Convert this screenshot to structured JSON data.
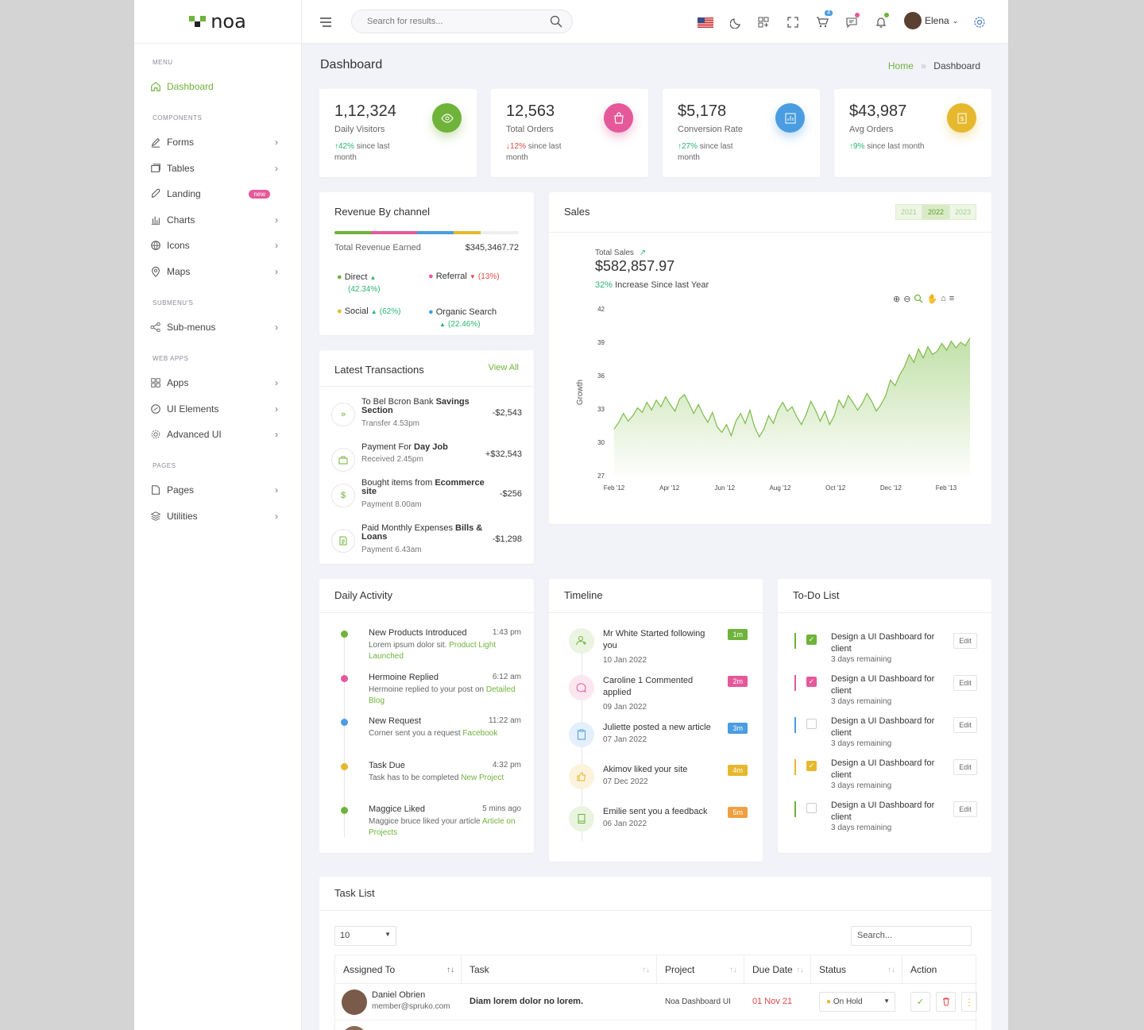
{
  "brand": {
    "name": "noa"
  },
  "sidebar": {
    "sections": {
      "menu": "MENU",
      "components": "COMPONENTS",
      "submenus": "SUBMENU'S",
      "webapps": "WEB APPS",
      "pages": "PAGES"
    },
    "items": {
      "dashboard": "Dashboard",
      "forms": "Forms",
      "tables": "Tables",
      "landing": "Landing",
      "landing_badge": "new",
      "charts": "Charts",
      "icons": "Icons",
      "maps": "Maps",
      "submenus": "Sub-menus",
      "apps": "Apps",
      "ui_elements": "UI Elements",
      "advanced_ui": "Advanced UI",
      "pages": "Pages",
      "utilities": "Utilities"
    }
  },
  "header": {
    "search_placeholder": "Search for results...",
    "cart_count": "4",
    "user_name": "Elena"
  },
  "page": {
    "title": "Dashboard",
    "breadcrumb_home": "Home",
    "breadcrumb_current": "Dashboard"
  },
  "stats": [
    {
      "value": "1,12,324",
      "label": "Daily Visitors",
      "change": "42%",
      "direction": "up",
      "suffix": "since last month",
      "color": "#6fb33a",
      "icon": "eye-icon"
    },
    {
      "value": "12,563",
      "label": "Total Orders",
      "change": "12%",
      "direction": "down",
      "suffix": "since last month",
      "color": "#e5599a",
      "icon": "bag-icon"
    },
    {
      "value": "$5,178",
      "label": "Conversion Rate",
      "change": "27%",
      "direction": "up",
      "suffix": "since last month",
      "color": "#4a9de0",
      "icon": "chart-icon"
    },
    {
      "value": "$43,987",
      "label": "Avg Orders",
      "change": "9%",
      "direction": "up",
      "suffix": "since last month",
      "color": "#e5b82e",
      "icon": "money-icon"
    }
  ],
  "revenue": {
    "title": "Revenue By channel",
    "total_label": "Total Revenue Earned",
    "total_value": "$345,3467.72",
    "channels": [
      {
        "name": "Direct",
        "pct": "(42.34%)",
        "dir": "up",
        "color": "#6fb33a"
      },
      {
        "name": "Referral",
        "pct": "(13%)",
        "dir": "down",
        "color": "#e5599a"
      },
      {
        "name": "Social",
        "pct": "(62%)",
        "dir": "up",
        "color": "#e5b82e"
      },
      {
        "name": "Organic Search",
        "pct": "(22.46%)",
        "dir": "up",
        "color": "#4a9de0"
      }
    ]
  },
  "transactions": {
    "title": "Latest Transactions",
    "view_all": "View All",
    "items": [
      {
        "title_pre": "To Bel Bcron Bank ",
        "title_bold": "Savings Section",
        "sub": "Transfer 4.53pm",
        "amount": "-$2,543"
      },
      {
        "title_pre": "Payment For ",
        "title_bold": "Day Job",
        "sub": "Received 2.45pm",
        "amount": "+$32,543"
      },
      {
        "title_pre": "Bought items from ",
        "title_bold": "Ecommerce site",
        "sub": "Payment 8.00am",
        "amount": "-$256"
      },
      {
        "title_pre": "Paid Monthly Expenses ",
        "title_bold": "Bills & Loans",
        "sub": "Payment 6.43am",
        "amount": "-$1,298"
      }
    ]
  },
  "sales": {
    "title": "Sales",
    "years": [
      "2021",
      "2022",
      "2023"
    ],
    "total_label": "Total Sales",
    "total_value": "$582,857.97",
    "increase_pct": "32%",
    "increase_text": "Increase Since last Year"
  },
  "chart_data": {
    "type": "area",
    "title": "",
    "xlabel": "",
    "ylabel": "Growth",
    "x_ticks": [
      "Feb '12",
      "Apr '12",
      "Jun '12",
      "Aug '12",
      "Oct '12",
      "Dec '12",
      "Feb '13"
    ],
    "y_ticks": [
      27,
      30,
      33,
      36,
      39,
      42
    ],
    "ylim": [
      27,
      42
    ],
    "series": [
      {
        "values": [
          31.2,
          31.8,
          32.6,
          31.9,
          32.4,
          33.1,
          32.7,
          33.6,
          32.9,
          33.8,
          33.2,
          34.1,
          33.4,
          32.8,
          33.9,
          34.3,
          33.5,
          32.6,
          33.4,
          32.5,
          31.8,
          32.7,
          31.4,
          30.9,
          31.6,
          30.6,
          31.9,
          32.6,
          31.7,
          32.9,
          31.4,
          30.5,
          31.2,
          32.4,
          31.7,
          32.9,
          33.6,
          32.8,
          33.2,
          32.3,
          31.6,
          32.5,
          33.7,
          32.9,
          31.9,
          32.8,
          31.6,
          32.4,
          33.8,
          33.1,
          34.2,
          33.6,
          32.9,
          33.5,
          34.4,
          33.7,
          32.8,
          33.4,
          34.2,
          35.6,
          35.1,
          36.1,
          36.8,
          37.9,
          37.2,
          38.4,
          37.6,
          38.6,
          37.9,
          38.2,
          38.9,
          38.3,
          39.1,
          38.5,
          39.0,
          38.7,
          39.4
        ]
      }
    ]
  },
  "activity": {
    "title": "Daily Activity",
    "items": [
      {
        "title": "New Products Introduced",
        "time": "1:43 pm",
        "desc": "Lorem ipsum dolor sit.",
        "link": "Product Light Launched",
        "color": "#6fb33a"
      },
      {
        "title": "Hermoine Replied",
        "time": "6:12 am",
        "desc": "Hermoine replied to your post on",
        "link": "Detailed Blog",
        "color": "#e5599a"
      },
      {
        "title": "New Request",
        "time": "11:22 am",
        "desc": "Corner sent you a request",
        "link": "Facebook",
        "color": "#4a9de0"
      },
      {
        "title": "Task Due",
        "time": "4:32 pm",
        "desc": "Task has to be completed",
        "link": "New Project",
        "color": "#e5b82e"
      },
      {
        "title": "Maggice Liked",
        "time": "5 mins ago",
        "desc": "Maggice bruce liked your article",
        "link": "Article on Projects",
        "color": "#6fb33a"
      }
    ]
  },
  "timeline": {
    "title": "Timeline",
    "items": [
      {
        "title": "Mr White Started following you",
        "date": "10 Jan 2022",
        "badge": "1m",
        "color": "#6fb33a",
        "icon": "user-plus-icon"
      },
      {
        "title": "Caroline 1 Commented applied",
        "date": "09 Jan 2022",
        "badge": "2m",
        "color": "#e5599a",
        "icon": "comment-icon"
      },
      {
        "title": "Juliette posted a new article",
        "date": "07 Jan 2022",
        "badge": "3m",
        "color": "#4a9de0",
        "icon": "clipboard-icon"
      },
      {
        "title": "Akimov liked your site",
        "date": "07 Dec 2022",
        "badge": "4m",
        "color": "#e5b82e",
        "icon": "thumbs-up-icon"
      },
      {
        "title": "Emilie sent you a feedback",
        "date": "06 Jan 2022",
        "badge": "5m",
        "color": "#f0a040",
        "icon": "book-icon"
      }
    ]
  },
  "todo": {
    "title": "To-Do List",
    "edit_label": "Edit",
    "items": [
      {
        "text": "Design a UI Dashboard for client",
        "sub": "3 days remaining",
        "checked": true,
        "color": "#6fb33a"
      },
      {
        "text": "Design a UI Dashboard for client",
        "sub": "3 days remaining",
        "checked": true,
        "color": "#e5599a"
      },
      {
        "text": "Design a UI Dashboard for client",
        "sub": "3 days remaining",
        "checked": false,
        "color": "#4a9de0"
      },
      {
        "text": "Design a UI Dashboard for client",
        "sub": "3 days remaining",
        "checked": true,
        "color": "#e5b82e"
      },
      {
        "text": "Design a UI Dashboard for client",
        "sub": "3 days remaining",
        "checked": false,
        "color": "#6fb33a"
      }
    ]
  },
  "tasks": {
    "title": "Task List",
    "page_size": "10",
    "search_placeholder": "Search...",
    "columns": [
      "Assigned To",
      "Task",
      "Project",
      "Due Date",
      "Status",
      "Action"
    ],
    "rows": [
      {
        "name": "Daniel Obrien",
        "email": "member@spruko.com",
        "task": "Diam lorem dolor no lorem.",
        "project": "Noa Dashboard UI",
        "due": "01 Nov 21",
        "status": "On Hold"
      }
    ]
  }
}
